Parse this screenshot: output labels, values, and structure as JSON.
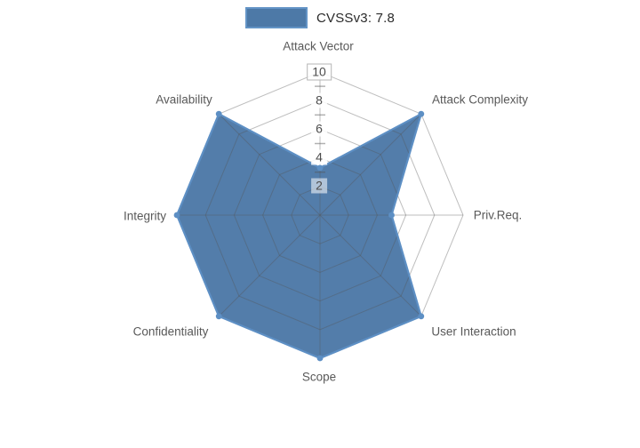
{
  "legend": {
    "label": "CVSSv3: 7.8",
    "swatch_color": "#4d79a7",
    "swatch_border": "#6394c6"
  },
  "chart_data": {
    "type": "radar",
    "title": "CVSSv3: 7.8",
    "axes": [
      "Attack Vector",
      "Attack Complexity",
      "Priv.Req.",
      "User Interaction",
      "Scope",
      "Confidentiality",
      "Integrity",
      "Availability"
    ],
    "series": [
      {
        "name": "CVSSv3: 7.8",
        "values": [
          3.3,
          10,
          5,
          10,
          10,
          10,
          10,
          10
        ]
      }
    ],
    "range": [
      0,
      10
    ],
    "ticks": [
      10,
      8,
      6,
      4,
      2
    ],
    "minor_ticks": [
      9,
      7,
      5,
      3
    ],
    "grid": "polygon-web",
    "legend_position": "top-center",
    "colors": {
      "fill": "#4d79a7",
      "stroke": "#5d8fc4",
      "grid_line": "#555555",
      "axis_label": "#595959",
      "tick_text": "#4d4d4d",
      "background": "#ffffff"
    }
  }
}
